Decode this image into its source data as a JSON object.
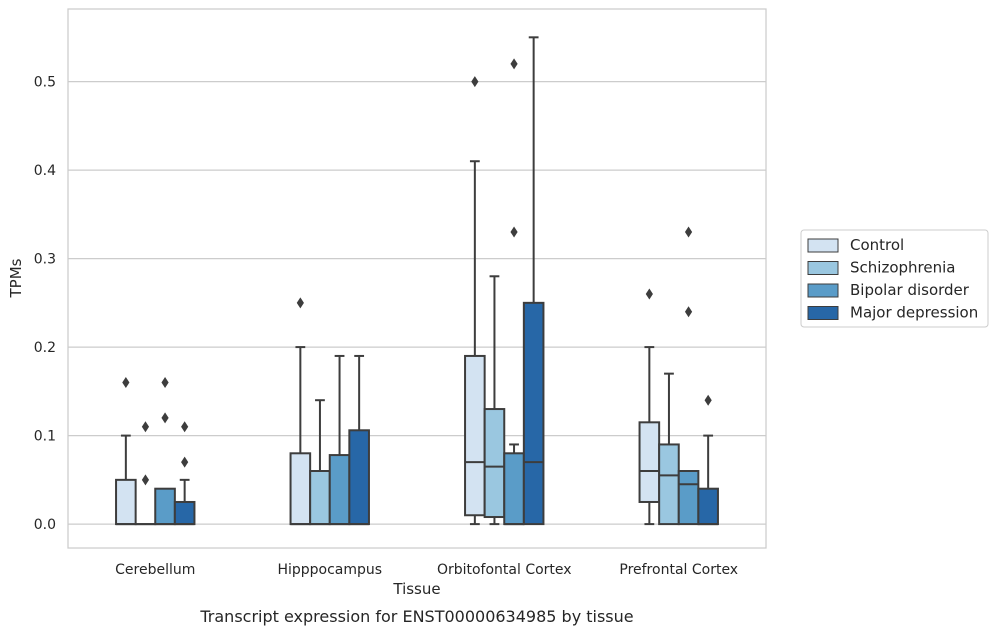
{
  "caption": "Transcript expression for ENST00000634985 by tissue",
  "chart_data": {
    "type": "box",
    "xlabel": "Tissue",
    "ylabel": "TPMs",
    "ylim": [
      -0.027,
      0.582
    ],
    "yticks": [
      "0.0",
      "0.1",
      "0.2",
      "0.3",
      "0.4",
      "0.5"
    ],
    "grid": "horizontal",
    "legend_position": "right",
    "categories": [
      "Cerebellum",
      "Hipppocampus",
      "Orbitofontal Cortex",
      "Prefrontal Cortex"
    ],
    "series": [
      {
        "name": "Control",
        "color": "#d3e3f2",
        "boxes": [
          {
            "min": 0.0,
            "q1": 0.0,
            "median": 0.0,
            "q3": 0.05,
            "max": 0.1,
            "outliers": [
              0.16
            ]
          },
          {
            "min": 0.0,
            "q1": 0.0,
            "median": 0.0,
            "q3": 0.08,
            "max": 0.2,
            "outliers": [
              0.25
            ]
          },
          {
            "min": 0.0,
            "q1": 0.01,
            "median": 0.07,
            "q3": 0.19,
            "max": 0.41,
            "outliers": [
              0.5
            ]
          },
          {
            "min": 0.0,
            "q1": 0.025,
            "median": 0.06,
            "q3": 0.115,
            "max": 0.2,
            "outliers": [
              0.26
            ]
          }
        ]
      },
      {
        "name": "Schizophrenia",
        "color": "#9ac7e0",
        "boxes": [
          {
            "min": 0.0,
            "q1": 0.0,
            "median": 0.0,
            "q3": 0.0,
            "max": 0.0,
            "outliers": [
              0.05,
              0.11
            ]
          },
          {
            "min": 0.0,
            "q1": 0.0,
            "median": 0.0,
            "q3": 0.06,
            "max": 0.14,
            "outliers": []
          },
          {
            "min": 0.0,
            "q1": 0.008,
            "median": 0.065,
            "q3": 0.13,
            "max": 0.28,
            "outliers": []
          },
          {
            "min": 0.0,
            "q1": 0.0,
            "median": 0.055,
            "q3": 0.09,
            "max": 0.17,
            "outliers": []
          }
        ]
      },
      {
        "name": "Bipolar disorder",
        "color": "#5a9cc8",
        "boxes": [
          {
            "min": 0.0,
            "q1": 0.0,
            "median": 0.0,
            "q3": 0.04,
            "max": 0.04,
            "outliers": [
              0.12,
              0.16
            ]
          },
          {
            "min": 0.0,
            "q1": 0.0,
            "median": 0.0,
            "q3": 0.078,
            "max": 0.19,
            "outliers": []
          },
          {
            "min": 0.0,
            "q1": 0.0,
            "median": 0.0,
            "q3": 0.08,
            "max": 0.09,
            "outliers": [
              0.33,
              0.52
            ]
          },
          {
            "min": 0.0,
            "q1": 0.0,
            "median": 0.045,
            "q3": 0.06,
            "max": 0.06,
            "outliers": [
              0.24,
              0.33
            ]
          }
        ]
      },
      {
        "name": "Major depression",
        "color": "#2767a7",
        "boxes": [
          {
            "min": 0.0,
            "q1": 0.0,
            "median": 0.0,
            "q3": 0.025,
            "max": 0.05,
            "outliers": [
              0.07,
              0.11
            ]
          },
          {
            "min": 0.0,
            "q1": 0.0,
            "median": 0.0,
            "q3": 0.106,
            "max": 0.19,
            "outliers": []
          },
          {
            "min": 0.0,
            "q1": 0.0,
            "median": 0.07,
            "q3": 0.25,
            "max": 0.55,
            "outliers": []
          },
          {
            "min": 0.0,
            "q1": 0.0,
            "median": 0.0,
            "q3": 0.04,
            "max": 0.1,
            "outliers": [
              0.14
            ]
          }
        ]
      }
    ]
  }
}
